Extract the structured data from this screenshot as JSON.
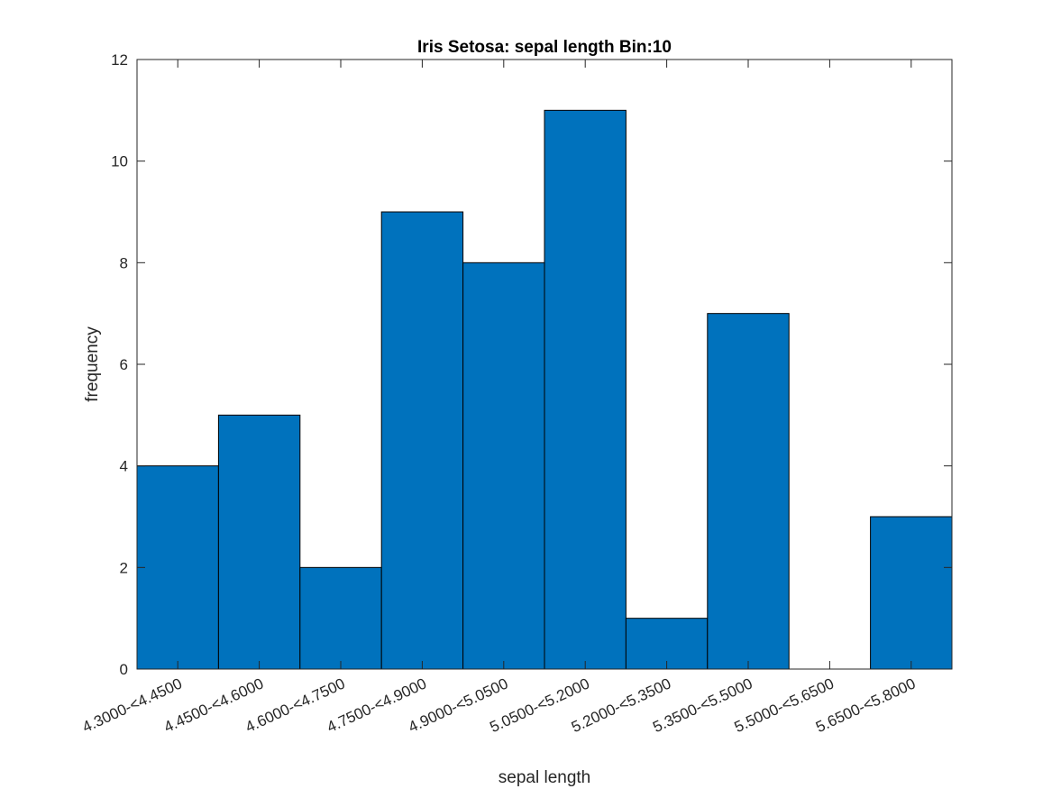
{
  "chart_data": {
    "type": "bar",
    "title": "Iris Setosa: sepal length Bin:10",
    "xlabel": "sepal length",
    "ylabel": "frequency",
    "categories": [
      "4.3000-<4.4500",
      "4.4500-<4.6000",
      "4.6000-<4.7500",
      "4.7500-<4.9000",
      "4.9000-<5.0500",
      "5.0500-<5.2000",
      "5.2000-<5.3500",
      "5.3500-<5.5000",
      "5.5000-<5.6500",
      "5.6500-<5.8000"
    ],
    "values": [
      4,
      5,
      2,
      9,
      8,
      11,
      1,
      7,
      0,
      3
    ],
    "ylim": [
      0,
      12
    ],
    "yticks": [
      0,
      2,
      4,
      6,
      8,
      10,
      12
    ],
    "grid": false,
    "bar_color": "#0072BD",
    "edge_color": "#000000"
  }
}
